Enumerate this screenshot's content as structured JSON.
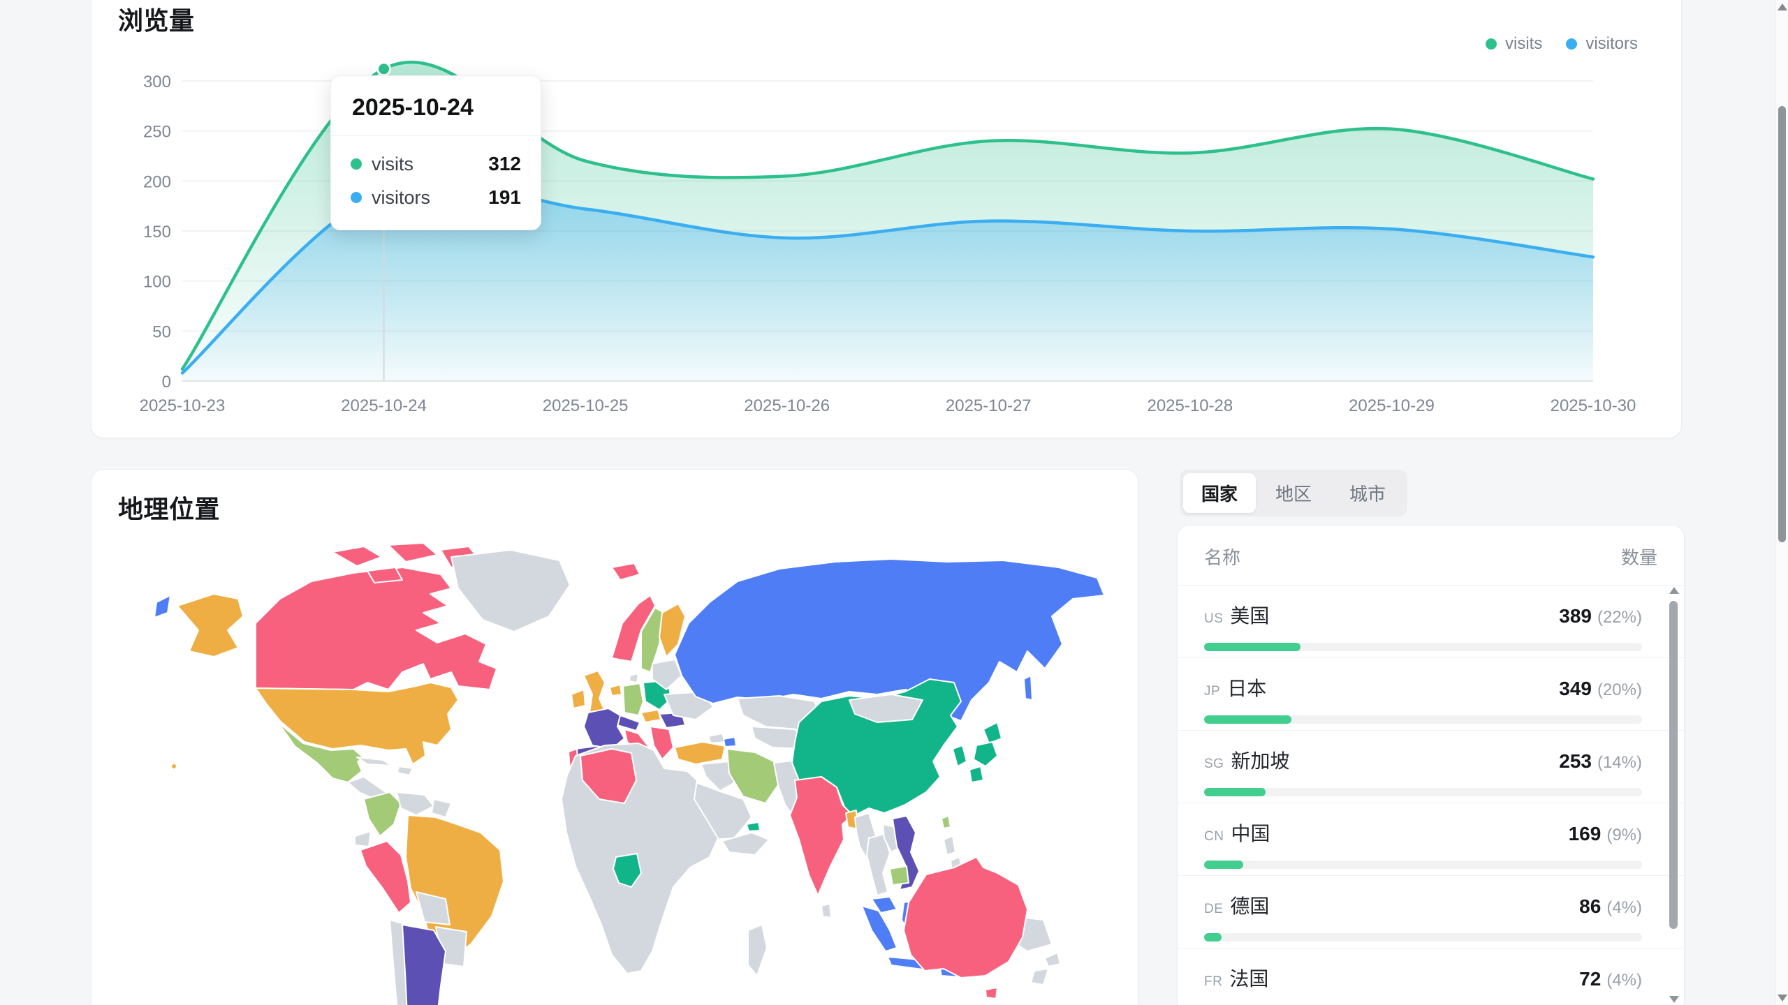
{
  "views_card": {
    "title": "浏览量",
    "legend": [
      {
        "label": "visits",
        "color": "#2ec08c"
      },
      {
        "label": "visitors",
        "color": "#3aaef0"
      }
    ],
    "tooltip": {
      "date": "2025-10-24",
      "rows": [
        {
          "label": "visits",
          "value": "312",
          "color": "#2ec08c"
        },
        {
          "label": "visitors",
          "value": "191",
          "color": "#3aaef0"
        }
      ]
    }
  },
  "chart_data": {
    "type": "area",
    "title": "浏览量",
    "xlabel": "",
    "ylabel": "",
    "x": [
      "2025-10-23",
      "2025-10-24",
      "2025-10-25",
      "2025-10-26",
      "2025-10-27",
      "2025-10-28",
      "2025-10-29",
      "2025-10-30"
    ],
    "series": [
      {
        "name": "visits",
        "color": "#2ec08c",
        "fill_top": "rgba(46,192,140,0.35)",
        "fill_bottom": "rgba(46,192,140,0.02)",
        "values": [
          12,
          312,
          220,
          205,
          240,
          228,
          252,
          202
        ]
      },
      {
        "name": "visitors",
        "color": "#3aaef0",
        "fill_top": "rgba(58,174,240,0.45)",
        "fill_bottom": "rgba(58,174,240,0.03)",
        "values": [
          8,
          191,
          172,
          143,
          160,
          150,
          152,
          124
        ]
      }
    ],
    "ylim": [
      0,
      300
    ],
    "yticks": [
      0,
      50,
      100,
      150,
      200,
      250,
      300
    ],
    "grid": "horizontal",
    "legend_position": "top-right",
    "highlight": {
      "x": "2025-10-24",
      "visits": 312,
      "visitors": 191
    }
  },
  "geo_card": {
    "title": "地理位置"
  },
  "geo_tabs": {
    "items": [
      {
        "label": "国家",
        "active": true
      },
      {
        "label": "地区",
        "active": false
      },
      {
        "label": "城市",
        "active": false
      }
    ]
  },
  "geo_table": {
    "name_header": "名称",
    "count_header": "数量",
    "bar_color": "#41ce8e",
    "rows": [
      {
        "code": "US",
        "name": "美国",
        "value": "389",
        "pct": 22
      },
      {
        "code": "JP",
        "name": "日本",
        "value": "349",
        "pct": 20
      },
      {
        "code": "SG",
        "name": "新加坡",
        "value": "253",
        "pct": 14
      },
      {
        "code": "CN",
        "name": "中国",
        "value": "169",
        "pct": 9
      },
      {
        "code": "DE",
        "name": "德国",
        "value": "86",
        "pct": 4
      },
      {
        "code": "FR",
        "name": "法国",
        "value": "72",
        "pct": 4
      }
    ]
  },
  "map": {
    "palette": {
      "pink": "#f7617e",
      "orange": "#efae43",
      "lightgreen": "#a2ca77",
      "emerald": "#12b48a",
      "blue": "#4e7df5",
      "indigo": "#5c50b4",
      "gray": "#d3d8de"
    },
    "regions": {
      "canada": "pink",
      "canada-arctic-1": "pink",
      "canada-arctic-2": "pink",
      "canada-arctic-3": "pink",
      "canada-arctic-4": "pink",
      "alaska": "orange",
      "chukotka": "blue",
      "hawaii": "orange",
      "greenland": "gray",
      "usa": "orange",
      "mexico": "lightgreen",
      "central-america": "gray",
      "cuba": "gray",
      "hispaniola": "gray",
      "colombia": "lightgreen",
      "venezuela": "gray",
      "guyanas": "gray",
      "ecuador": "gray",
      "peru": "pink",
      "brazil": "orange",
      "bolivia": "gray",
      "paraguay-uruguay": "gray",
      "chile": "gray",
      "argentina": "indigo",
      "iceland": "pink",
      "norway": "pink",
      "sweden": "lightgreen",
      "finland": "orange",
      "denmark": "gray",
      "uk": "orange",
      "ireland": "orange",
      "lowlands": "orange",
      "germany": "lightgreen",
      "poland": "emerald",
      "czech": "orange",
      "alpine": "indigo",
      "france": "indigo",
      "spain": "indigo",
      "portugal": "pink",
      "italy": "pink",
      "sicily": "pink",
      "balkans": "pink",
      "romania": "indigo",
      "ukraine": "gray",
      "belarus-baltics": "gray",
      "russia": "blue",
      "sakhalin": "blue",
      "kazakhstan": "gray",
      "central-asia": "gray",
      "caucasus": "gray",
      "azerbaijan": "blue",
      "turkey": "orange",
      "syria-iraq": "gray",
      "saudi": "gray",
      "yemen-oman": "gray",
      "uae": "emerald",
      "iran": "lightgreen",
      "afpak": "gray",
      "india": "pink",
      "bangladesh": "orange",
      "srilanka": "gray",
      "china": "emerald",
      "mongolia": "gray",
      "taiwan": "lightgreen",
      "korea": "emerald",
      "japan-1": "emerald",
      "japan-2": "emerald",
      "japan-3": "emerald",
      "myanmar": "gray",
      "thailand": "gray",
      "laos": "gray",
      "vietnam": "indigo",
      "cambodia": "lightgreen",
      "malaysia": "blue",
      "sumatra": "blue",
      "java": "blue",
      "borneo": "blue",
      "sulawesi": "blue",
      "lesser-sunda": "blue",
      "west-papua": "blue",
      "png": "gray",
      "philippines-1": "gray",
      "philippines-2": "gray",
      "africa": "gray",
      "algeria": "pink",
      "nigeria": "emerald",
      "madagascar": "gray",
      "australia": "pink",
      "tasmania": "pink",
      "nz-north": "gray",
      "nz-south": "gray"
    }
  }
}
